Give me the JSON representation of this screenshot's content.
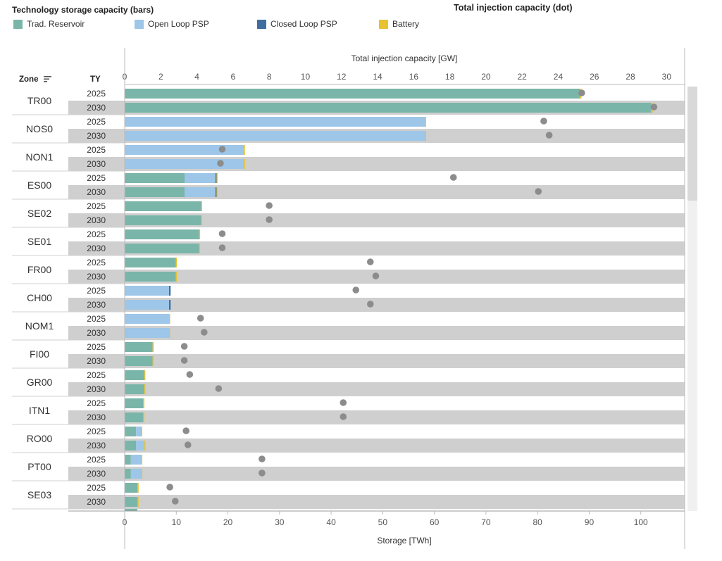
{
  "legend": {
    "title": "Technology storage capacity (bars)",
    "dot_title": "Total injection capacity (dot)",
    "items": [
      {
        "label": "Trad. Reservoir",
        "color": "#7ab5a9"
      },
      {
        "label": "Open Loop PSP",
        "color": "#9dc6e8"
      },
      {
        "label": "Closed Loop PSP",
        "color": "#3f6e9e"
      },
      {
        "label": "Battery",
        "color": "#e8c232"
      }
    ]
  },
  "headers": {
    "zone": "Zone",
    "ty": "TY"
  },
  "chart_data": {
    "type": "bar",
    "orientation": "horizontal-stacked-with-dots",
    "top_axis": {
      "label": "Total injection capacity [GW]",
      "range": [
        0,
        31
      ],
      "ticks": [
        0,
        2,
        4,
        6,
        8,
        10,
        12,
        14,
        16,
        18,
        20,
        22,
        24,
        26,
        28,
        30
      ]
    },
    "bottom_axis": {
      "label": "Storage [TWh]",
      "range": [
        0,
        108.5
      ],
      "ticks": [
        0,
        10,
        20,
        30,
        40,
        50,
        60,
        70,
        80,
        90,
        100
      ]
    },
    "series": [
      {
        "name": "Trad. Reservoir"
      },
      {
        "name": "Open Loop PSP"
      },
      {
        "name": "Closed Loop PSP"
      },
      {
        "name": "Battery"
      }
    ],
    "zones": [
      {
        "zone": "TR00",
        "rows": [
          {
            "ty": "2025",
            "trad": 88.2,
            "open": 0,
            "closed": 0,
            "battery": 0.3,
            "injection": 25.3
          },
          {
            "ty": "2030",
            "trad": 102.0,
            "open": 0,
            "closed": 0,
            "battery": 0.3,
            "injection": 29.3
          }
        ]
      },
      {
        "zone": "NOS0",
        "rows": [
          {
            "ty": "2025",
            "trad": 0,
            "open": 58.2,
            "closed": 0,
            "battery": 0.2,
            "injection": 23.2
          },
          {
            "ty": "2030",
            "trad": 0,
            "open": 58.2,
            "closed": 0,
            "battery": 0.2,
            "injection": 23.5
          }
        ]
      },
      {
        "zone": "NON1",
        "rows": [
          {
            "ty": "2025",
            "trad": 0,
            "open": 23.1,
            "closed": 0,
            "battery": 0.2,
            "injection": 5.4
          },
          {
            "ty": "2030",
            "trad": 0,
            "open": 23.1,
            "closed": 0,
            "battery": 0.2,
            "injection": 5.3
          }
        ]
      },
      {
        "zone": "ES00",
        "rows": [
          {
            "ty": "2025",
            "trad": 11.6,
            "open": 6.0,
            "closed": 0.2,
            "battery": 0.1,
            "injection": 18.2
          },
          {
            "ty": "2030",
            "trad": 11.6,
            "open": 6.0,
            "closed": 0.2,
            "battery": 0.1,
            "injection": 22.9
          }
        ]
      },
      {
        "zone": "SE02",
        "rows": [
          {
            "ty": "2025",
            "trad": 14.8,
            "open": 0,
            "closed": 0,
            "battery": 0.2,
            "injection": 8.0
          },
          {
            "ty": "2030",
            "trad": 14.8,
            "open": 0,
            "closed": 0,
            "battery": 0.2,
            "injection": 8.0
          }
        ]
      },
      {
        "zone": "SE01",
        "rows": [
          {
            "ty": "2025",
            "trad": 14.4,
            "open": 0,
            "closed": 0,
            "battery": 0.2,
            "injection": 5.4
          },
          {
            "ty": "2030",
            "trad": 14.4,
            "open": 0,
            "closed": 0,
            "battery": 0.2,
            "injection": 5.4
          }
        ]
      },
      {
        "zone": "FR00",
        "rows": [
          {
            "ty": "2025",
            "trad": 9.9,
            "open": 0,
            "closed": 0,
            "battery": 0.2,
            "injection": 13.6
          },
          {
            "ty": "2030",
            "trad": 9.9,
            "open": 0,
            "closed": 0,
            "battery": 0.2,
            "injection": 13.9
          }
        ]
      },
      {
        "zone": "CH00",
        "rows": [
          {
            "ty": "2025",
            "trad": 0,
            "open": 8.6,
            "closed": 0.3,
            "battery": 0,
            "injection": 12.8
          },
          {
            "ty": "2030",
            "trad": 0,
            "open": 8.6,
            "closed": 0.3,
            "battery": 0,
            "injection": 13.6
          }
        ]
      },
      {
        "zone": "NOM1",
        "rows": [
          {
            "ty": "2025",
            "trad": 0,
            "open": 8.6,
            "closed": 0,
            "battery": 0.1,
            "injection": 4.2
          },
          {
            "ty": "2030",
            "trad": 0,
            "open": 8.6,
            "closed": 0,
            "battery": 0.1,
            "injection": 4.4
          }
        ]
      },
      {
        "zone": "FI00",
        "rows": [
          {
            "ty": "2025",
            "trad": 5.4,
            "open": 0,
            "closed": 0,
            "battery": 0.2,
            "injection": 3.3
          },
          {
            "ty": "2030",
            "trad": 5.4,
            "open": 0,
            "closed": 0,
            "battery": 0.2,
            "injection": 3.3
          }
        ]
      },
      {
        "zone": "GR00",
        "rows": [
          {
            "ty": "2025",
            "trad": 3.8,
            "open": 0,
            "closed": 0,
            "battery": 0.2,
            "injection": 3.6
          },
          {
            "ty": "2030",
            "trad": 3.8,
            "open": 0,
            "closed": 0,
            "battery": 0.2,
            "injection": 5.2
          }
        ]
      },
      {
        "zone": "ITN1",
        "rows": [
          {
            "ty": "2025",
            "trad": 3.6,
            "open": 0,
            "closed": 0,
            "battery": 0.2,
            "injection": 12.1
          },
          {
            "ty": "2030",
            "trad": 3.6,
            "open": 0,
            "closed": 0,
            "battery": 0.2,
            "injection": 12.1
          }
        ]
      },
      {
        "zone": "RO00",
        "rows": [
          {
            "ty": "2025",
            "trad": 2.2,
            "open": 1.0,
            "closed": 0,
            "battery": 0.1,
            "injection": 3.4
          },
          {
            "ty": "2030",
            "trad": 2.2,
            "open": 1.6,
            "closed": 0,
            "battery": 0.1,
            "injection": 3.5
          }
        ]
      },
      {
        "zone": "PT00",
        "rows": [
          {
            "ty": "2025",
            "trad": 1.2,
            "open": 2.0,
            "closed": 0,
            "battery": 0.1,
            "injection": 7.6
          },
          {
            "ty": "2030",
            "trad": 1.2,
            "open": 2.0,
            "closed": 0,
            "battery": 0.1,
            "injection": 7.6
          }
        ]
      },
      {
        "zone": "SE03",
        "rows": [
          {
            "ty": "2025",
            "trad": 2.5,
            "open": 0,
            "closed": 0,
            "battery": 0.1,
            "injection": 2.5
          },
          {
            "ty": "2030",
            "trad": 2.5,
            "open": 0,
            "closed": 0,
            "battery": 0.1,
            "injection": 2.8
          }
        ]
      }
    ]
  }
}
